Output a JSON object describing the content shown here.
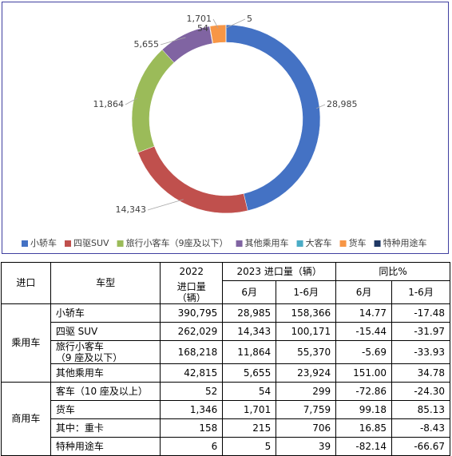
{
  "chart_data": {
    "type": "donut",
    "categories": [
      "小轿车",
      "四驱SUV",
      "旅行小客车（9座及以下）",
      "其他乘用车",
      "大客车",
      "货车",
      "特种用途车"
    ],
    "values": [
      28985,
      14343,
      11864,
      5655,
      54,
      1701,
      5
    ],
    "value_labels": [
      "28,985",
      "14,343",
      "11,864",
      "5,655",
      "54",
      "1,701",
      "5"
    ],
    "colors": [
      "#4472c4",
      "#c0504d",
      "#9bbb59",
      "#8064a2",
      "#4bacc6",
      "#f79646",
      "#1f3864"
    ],
    "legend": "bottom"
  },
  "table": {
    "header": {
      "import": "进口",
      "model": "车型",
      "y2022": "2022",
      "unit": "进口量（辆）",
      "y2023": "2023 进口量（辆）",
      "yoy": "同比%",
      "jun": "6月",
      "h1": "1-6月",
      "jun2": "6月",
      "h12": "1-6月"
    },
    "groups": [
      {
        "name": "乘用车",
        "rows": [
          [
            [
              "小轿车"
            ],
            "390,795",
            "28,985",
            "158,366",
            "14.77",
            "-17.48"
          ],
          [
            [
              "四驱 SUV"
            ],
            "262,029",
            "14,343",
            "100,171",
            "-15.44",
            "-31.97"
          ],
          [
            [
              "旅行小客车",
              "（9 座及以下）"
            ],
            "168,218",
            "11,864",
            "55,370",
            "-5.69",
            "-33.93"
          ],
          [
            [
              "其他乘用车"
            ],
            "42,815",
            "5,655",
            "23,924",
            "151.00",
            "34.78"
          ]
        ]
      },
      {
        "name": "商用车",
        "rows": [
          [
            [
              "客车（10 座及以上）"
            ],
            "52",
            "54",
            "299",
            "-72.86",
            "-24.30"
          ],
          [
            [
              "货车"
            ],
            "1,346",
            "1,701",
            "7,759",
            "99.18",
            "85.13"
          ],
          [
            [
              "其中：重卡"
            ],
            "158",
            "215",
            "706",
            "16.85",
            "-8.43"
          ],
          [
            [
              "特种用途车"
            ],
            "6",
            "5",
            "39",
            "-82.14",
            "-66.67"
          ]
        ]
      }
    ]
  }
}
